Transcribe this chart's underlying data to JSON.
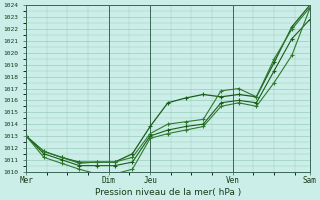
{
  "xlabel": "Pression niveau de la mer( hPa )",
  "background_color": "#cceee8",
  "grid_color": "#99ccbb",
  "line_color_dark": "#1a5c1a",
  "line_color_mid": "#2d7a2d",
  "ylim": [
    1010,
    1024
  ],
  "yticks": [
    1010,
    1011,
    1012,
    1013,
    1014,
    1015,
    1016,
    1017,
    1018,
    1019,
    1020,
    1021,
    1022,
    1023,
    1024
  ],
  "day_labels": [
    "Mer",
    "Dim",
    "Jeu",
    "Ven",
    "Sam"
  ],
  "day_positions": [
    0.0,
    4.375,
    6.5625,
    10.9375,
    15.0
  ],
  "series_high": [
    1013.0,
    1011.7,
    1011.2,
    1010.7,
    1010.8,
    1010.8,
    1011.2,
    1013.2,
    1014.0,
    1014.2,
    1014.4,
    1016.8,
    1017.0,
    1016.3,
    1019.5,
    1022.0,
    1023.8
  ],
  "series_mid": [
    1013.0,
    1011.5,
    1011.0,
    1010.5,
    1010.5,
    1010.5,
    1010.8,
    1013.0,
    1013.5,
    1013.8,
    1014.0,
    1015.8,
    1016.0,
    1015.8,
    1018.5,
    1021.2,
    1022.8
  ],
  "series_low": [
    1013.0,
    1011.2,
    1010.7,
    1010.2,
    1009.8,
    1009.8,
    1010.2,
    1012.8,
    1013.2,
    1013.5,
    1013.8,
    1015.5,
    1015.8,
    1015.5,
    1017.5,
    1019.8,
    1023.7
  ],
  "series_top": [
    1013.0,
    1011.7,
    1011.2,
    1010.8,
    1010.8,
    1010.8,
    1011.5,
    1013.8,
    1015.8,
    1016.2,
    1016.5,
    1016.3,
    1016.5,
    1016.3,
    1019.2,
    1022.2,
    1024.0
  ],
  "n_points": 17
}
